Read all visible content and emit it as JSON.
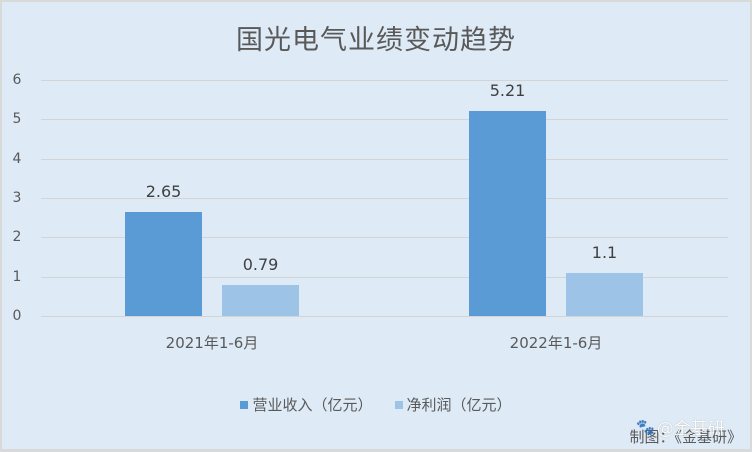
{
  "chart_data": {
    "type": "bar",
    "title": "国光电气业绩变动趋势",
    "categories": [
      "2021年1-6月",
      "2022年1-6月"
    ],
    "series": [
      {
        "name": "营业收入（亿元）",
        "values": [
          2.65,
          5.21
        ],
        "color": "#5b9bd5"
      },
      {
        "name": "净利润（亿元）",
        "values": [
          0.79,
          1.1
        ],
        "color": "#9dc3e6"
      }
    ],
    "data_labels": [
      [
        "2.65",
        "5.21"
      ],
      [
        "0.79",
        "1.1"
      ]
    ],
    "xlabel": "",
    "ylabel": "",
    "ylim": [
      0,
      6
    ],
    "yticks": [
      "0",
      "1",
      "2",
      "3",
      "4",
      "5",
      "6"
    ],
    "grid": true,
    "legend_position": "bottom"
  },
  "credit": "制图：《金基研》",
  "watermark": "@金基研",
  "colors": {
    "background": "#deebf7",
    "revenue": "#5b9bd5",
    "net_profit": "#9dc3e6",
    "gridline": "#d4d4d4",
    "text": "#595959"
  }
}
